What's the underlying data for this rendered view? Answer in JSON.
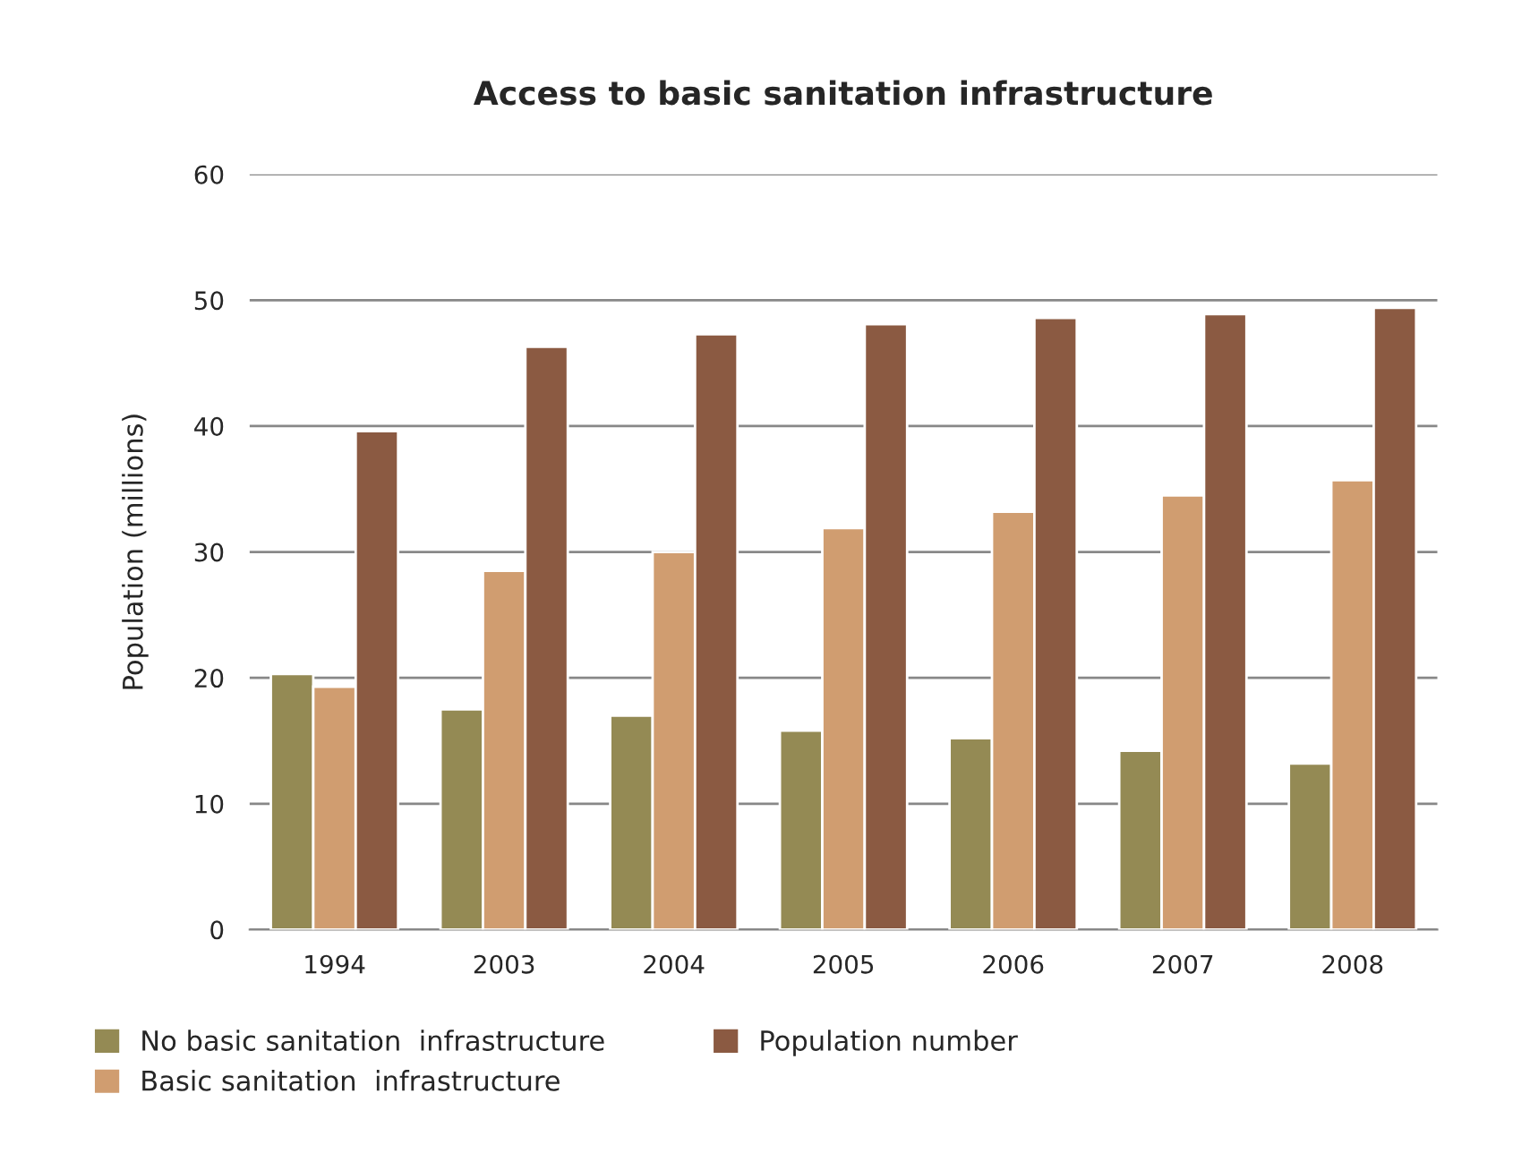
{
  "chart_data": {
    "type": "bar",
    "title": "Access to basic sanitation infrastructure",
    "ylabel": "Population (millions)",
    "categories": [
      "1994",
      "2003",
      "2004",
      "2005",
      "2006",
      "2007",
      "2008"
    ],
    "series": [
      {
        "name": "No basic sanitation  infrastructure",
        "color": "#948a54",
        "values": [
          20.3,
          17.5,
          17.0,
          15.8,
          15.2,
          14.2,
          13.2
        ]
      },
      {
        "name": "Basic sanitation  infrastructure",
        "color": "#d09d70",
        "values": [
          19.3,
          28.5,
          30.0,
          31.9,
          33.2,
          34.5,
          35.7
        ]
      },
      {
        "name": "Population number",
        "color": "#8b5a42",
        "values": [
          39.6,
          46.3,
          47.3,
          48.1,
          48.6,
          48.9,
          49.4
        ]
      }
    ],
    "ylim": [
      0,
      60
    ],
    "yticks": [
      0,
      10,
      20,
      30,
      40,
      50,
      60
    ],
    "grid": "y",
    "legend": "bottom"
  }
}
